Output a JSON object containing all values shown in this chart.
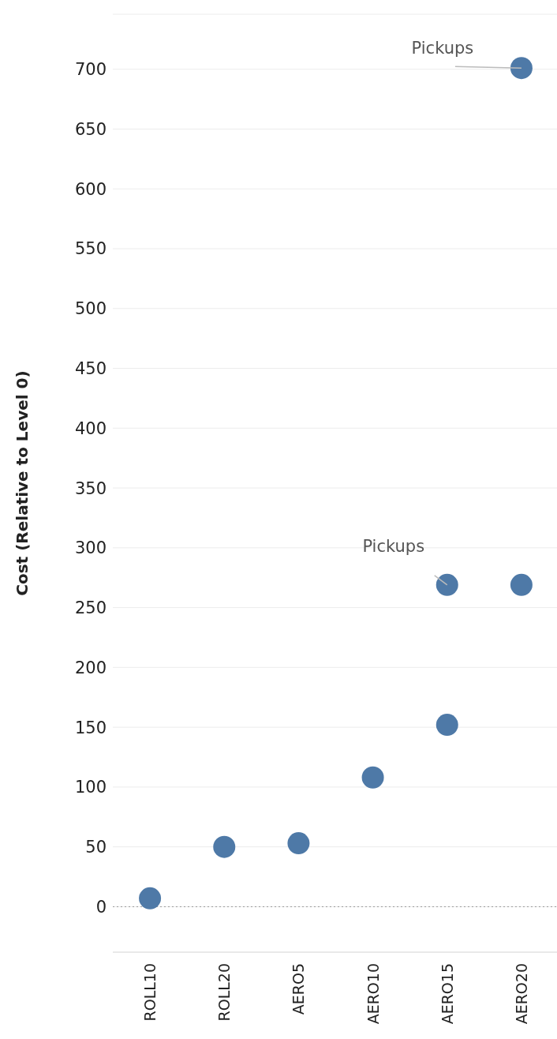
{
  "chart_data": {
    "type": "scatter",
    "ylabel": "Cost (Relative to Level 0)",
    "categories": [
      "ROLL10",
      "ROLL20",
      "AERO5",
      "AERO10",
      "AERO15",
      "AERO20"
    ],
    "series": [
      {
        "color": "#4e79a7",
        "values": [
          7,
          50,
          53,
          108,
          152,
          269
        ]
      },
      {
        "color": "#4e79a7",
        "values": [
          null,
          null,
          null,
          null,
          269,
          701
        ]
      }
    ],
    "ylim": [
      -38,
      746
    ],
    "yticks": [
      0,
      50,
      100,
      150,
      200,
      250,
      300,
      350,
      400,
      450,
      500,
      550,
      600,
      650,
      700
    ],
    "grid": "y",
    "marker": "circle",
    "ref_lines": [
      {
        "axis": "y",
        "value": 0,
        "line_style": "dotted",
        "color": "#999999"
      }
    ],
    "annotations": [
      {
        "text": "Pickups",
        "x": "AERO20",
        "y": 701
      },
      {
        "text": "Pickups",
        "x": "AERO15",
        "y": 269
      }
    ]
  }
}
